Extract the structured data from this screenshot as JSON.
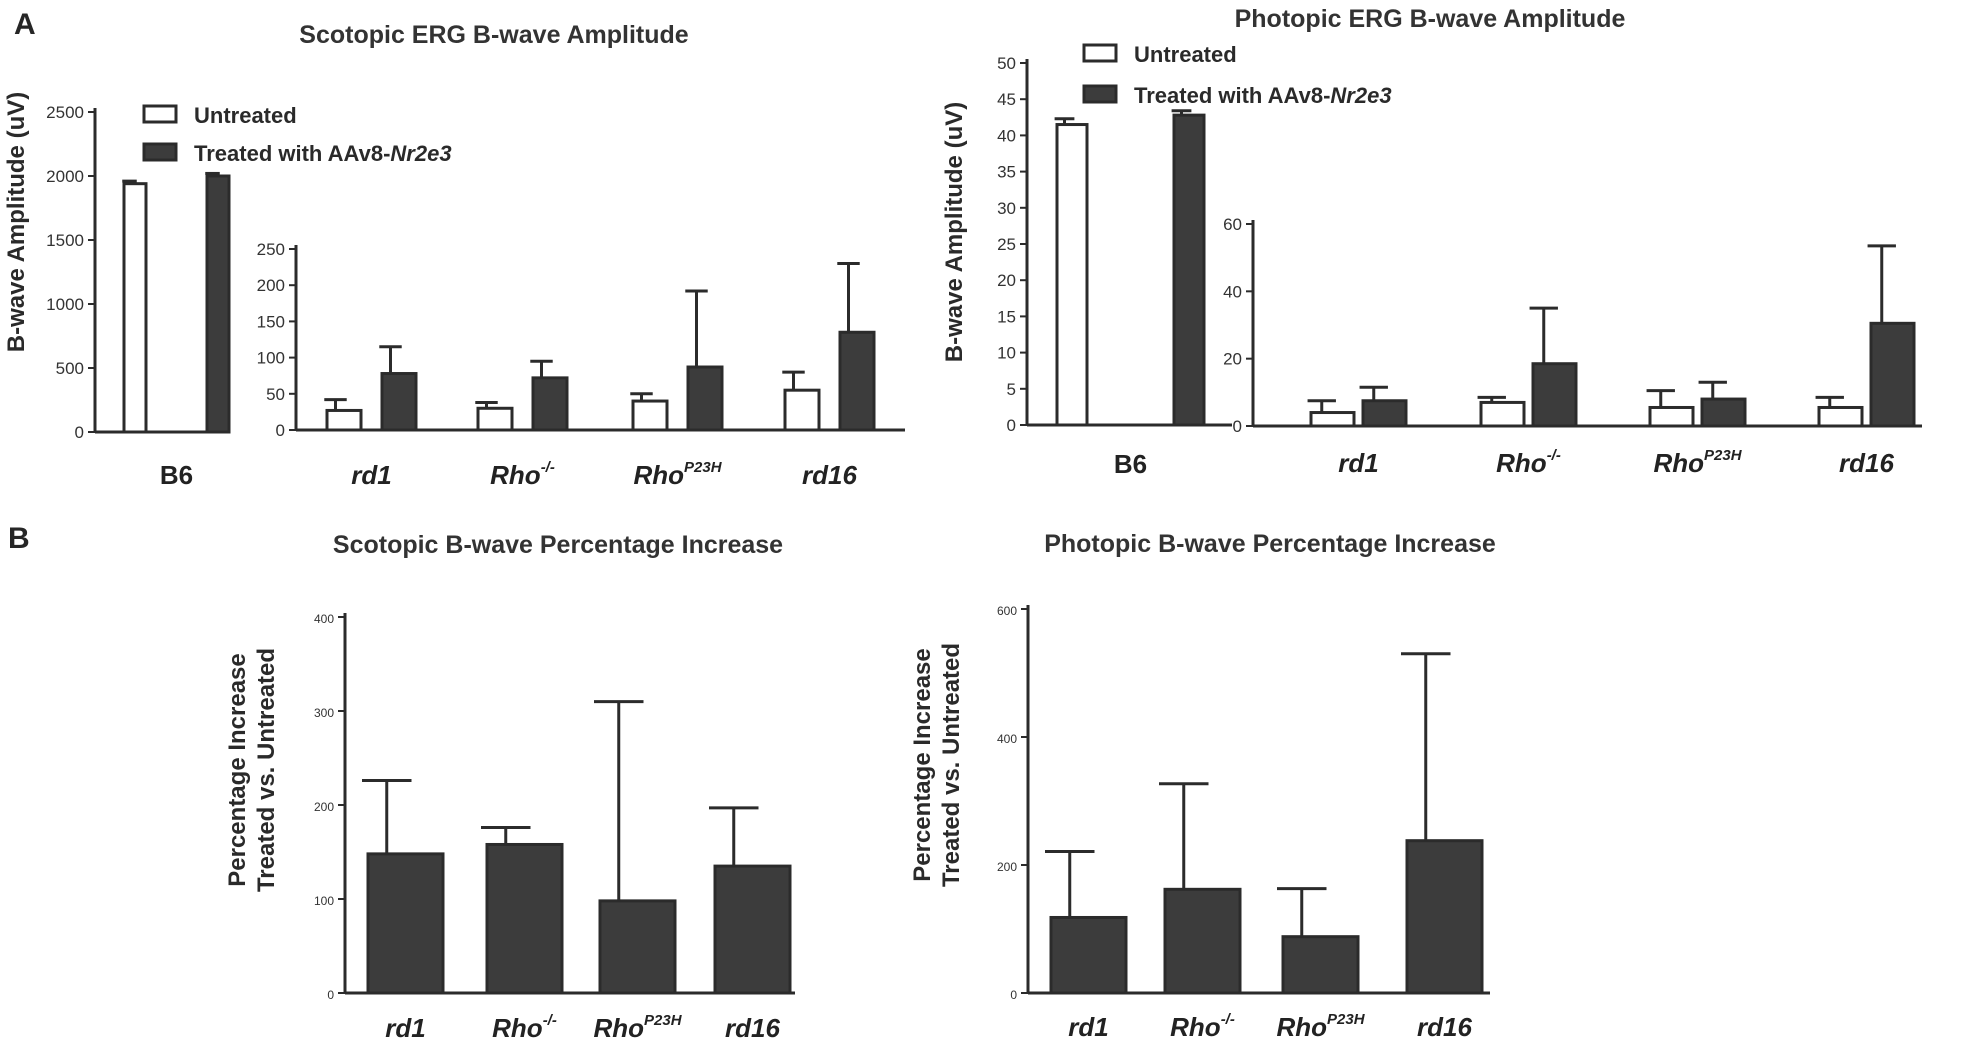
{
  "panels": {
    "a": "A",
    "b": "B"
  },
  "colors": {
    "treated": "#3c3c3c",
    "untreated": "#ffffff",
    "axis": "#2b2b2b",
    "text": "#262626"
  },
  "legend": {
    "untreated": "Untreated",
    "treated_prefix": "Treated with AAv8-",
    "treated_gene": "Nr2e3"
  },
  "chart_data": [
    {
      "id": "scotopic-amplitude",
      "type": "bar",
      "title": "Scotopic ERG B-wave Amplitude",
      "ylabel": "B-wave Amplitude (uV)",
      "insets": [
        {
          "categories": [
            {
              "base": "B6",
              "sup": ""
            }
          ],
          "ylim": [
            0,
            2500
          ],
          "ticks": [
            0,
            500,
            1000,
            1500,
            2000,
            2500
          ],
          "series": [
            {
              "name": "Untreated",
              "values": [
                1940
              ],
              "errors": [
                20
              ]
            },
            {
              "name": "Treated with AAv8-Nr2e3",
              "values": [
                2000
              ],
              "errors": [
                20
              ]
            }
          ]
        },
        {
          "categories": [
            {
              "base": "rd1",
              "sup": ""
            },
            {
              "base": "Rho",
              "sup": "-/-"
            },
            {
              "base": "Rho",
              "sup": "P23H"
            },
            {
              "base": "rd16",
              "sup": ""
            }
          ],
          "ylim": [
            0,
            250
          ],
          "ticks": [
            0,
            50,
            100,
            150,
            200,
            250
          ],
          "series": [
            {
              "name": "Untreated",
              "values": [
                27,
                30,
                40,
                55
              ],
              "errors": [
                15,
                8,
                10,
                25
              ]
            },
            {
              "name": "Treated with AAv8-Nr2e3",
              "values": [
                78,
                72,
                87,
                135
              ],
              "errors": [
                37,
                23,
                105,
                95
              ]
            }
          ]
        }
      ]
    },
    {
      "id": "photopic-amplitude",
      "type": "bar",
      "title": "Photopic ERG B-wave Amplitude",
      "ylabel": "B-wave Amplitude (uV)",
      "insets": [
        {
          "categories": [
            {
              "base": "B6",
              "sup": ""
            }
          ],
          "ylim": [
            0,
            50
          ],
          "ticks": [
            0,
            5,
            10,
            15,
            20,
            25,
            30,
            35,
            40,
            45,
            50
          ],
          "series": [
            {
              "name": "Untreated",
              "values": [
                41.5
              ],
              "errors": [
                0.8
              ]
            },
            {
              "name": "Treated with AAv8-Nr2e3",
              "values": [
                42.8
              ],
              "errors": [
                0.6
              ]
            }
          ]
        },
        {
          "categories": [
            {
              "base": "rd1",
              "sup": ""
            },
            {
              "base": "Rho",
              "sup": "-/-"
            },
            {
              "base": "Rho",
              "sup": "P23H"
            },
            {
              "base": "rd16",
              "sup": ""
            }
          ],
          "ylim": [
            0,
            60
          ],
          "ticks": [
            0,
            20,
            40,
            60
          ],
          "series": [
            {
              "name": "Untreated",
              "values": [
                4,
                7,
                5.5,
                5.5
              ],
              "errors": [
                3.5,
                1.5,
                5,
                3
              ]
            },
            {
              "name": "Treated with AAv8-Nr2e3",
              "values": [
                7.5,
                18.5,
                8,
                30.5
              ],
              "errors": [
                4,
                16.5,
                5,
                23
              ]
            }
          ]
        }
      ]
    },
    {
      "id": "scotopic-increase",
      "type": "bar",
      "title": "Scotopic B-wave Percentage Increase",
      "ylabel_lines": [
        "Percentage Increase",
        "Treated vs. Untreated"
      ],
      "categories": [
        {
          "base": "rd1",
          "sup": ""
        },
        {
          "base": "Rho",
          "sup": "-/-"
        },
        {
          "base": "Rho",
          "sup": "P23H"
        },
        {
          "base": "rd16",
          "sup": ""
        }
      ],
      "ylim": [
        0,
        400
      ],
      "ticks": [
        0,
        100,
        200,
        300,
        400
      ],
      "values": [
        148,
        158,
        98,
        135
      ],
      "errors": [
        78,
        18,
        212,
        62
      ]
    },
    {
      "id": "photopic-increase",
      "type": "bar",
      "title": "Photopic B-wave Percentage Increase",
      "ylabel_lines": [
        "Percentage Increase",
        "Treated vs. Untreated"
      ],
      "categories": [
        {
          "base": "rd1",
          "sup": ""
        },
        {
          "base": "Rho",
          "sup": "-/-"
        },
        {
          "base": "Rho",
          "sup": "P23H"
        },
        {
          "base": "rd16",
          "sup": ""
        }
      ],
      "ylim": [
        0,
        600
      ],
      "ticks": [
        0,
        200,
        400,
        600
      ],
      "values": [
        118,
        162,
        88,
        238
      ],
      "errors": [
        103,
        165,
        75,
        292
      ]
    }
  ]
}
